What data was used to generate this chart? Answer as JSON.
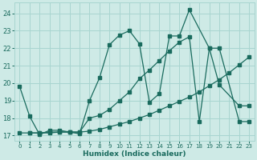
{
  "xlabel": "Humidex (Indice chaleur)",
  "xlim": [
    -0.5,
    23.5
  ],
  "ylim": [
    16.7,
    24.6
  ],
  "xticks": [
    0,
    1,
    2,
    3,
    4,
    5,
    6,
    7,
    8,
    9,
    10,
    11,
    12,
    13,
    14,
    15,
    16,
    17,
    18,
    19,
    20,
    21,
    22,
    23
  ],
  "yticks": [
    17,
    18,
    19,
    20,
    21,
    22,
    23,
    24
  ],
  "bg_color": "#ceeae6",
  "grid_color": "#a8d5d0",
  "line_color": "#1a6b5e",
  "s1_x": [
    0,
    1,
    2,
    3,
    4,
    5,
    6,
    7,
    8,
    9,
    10,
    11,
    12,
    13,
    14,
    15,
    16,
    17,
    19,
    20,
    22,
    23
  ],
  "s1_y": [
    19.8,
    18.1,
    17.05,
    17.3,
    17.3,
    17.2,
    17.1,
    19.0,
    20.3,
    22.2,
    22.75,
    23.0,
    22.25,
    18.9,
    19.4,
    22.7,
    22.7,
    24.2,
    22.0,
    19.9,
    18.7,
    18.7
  ],
  "s2_x": [
    0,
    1,
    2,
    3,
    4,
    5,
    6,
    7,
    8,
    9,
    10,
    11,
    12,
    13,
    14,
    15,
    16,
    17,
    18,
    19,
    20,
    21,
    22,
    23
  ],
  "s2_y": [
    17.15,
    17.15,
    17.15,
    17.2,
    17.2,
    17.2,
    17.2,
    17.25,
    17.35,
    17.5,
    17.65,
    17.8,
    18.0,
    18.2,
    18.45,
    18.7,
    18.95,
    19.2,
    19.5,
    19.85,
    20.2,
    20.6,
    21.05,
    21.5
  ],
  "s3_x": [
    1,
    2,
    3,
    4,
    5,
    6,
    7,
    8,
    9,
    10,
    11,
    12,
    13,
    14,
    15,
    16,
    17,
    18,
    19,
    20,
    22,
    23
  ],
  "s3_y": [
    17.15,
    17.15,
    17.15,
    17.2,
    17.2,
    17.2,
    18.0,
    18.15,
    18.5,
    19.0,
    19.5,
    20.25,
    20.75,
    21.3,
    21.85,
    22.35,
    22.65,
    17.8,
    22.0,
    22.0,
    17.8,
    17.8
  ]
}
